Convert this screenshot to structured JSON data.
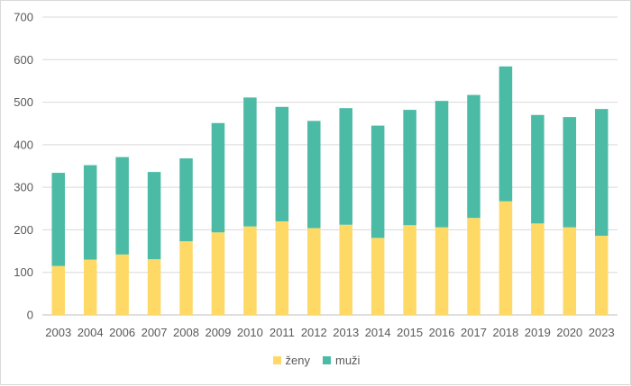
{
  "chart_data": {
    "type": "bar",
    "stacked": true,
    "title": "",
    "xlabel": "",
    "ylabel": "",
    "ylim": [
      0,
      700
    ],
    "yticks": [
      0,
      100,
      200,
      300,
      400,
      500,
      600,
      700
    ],
    "grid": true,
    "legend_position": "bottom",
    "categories": [
      "2003",
      "2004",
      "2006",
      "2007",
      "2008",
      "2009",
      "2010",
      "2011",
      "2012",
      "2013",
      "2014",
      "2015",
      "2016",
      "2017",
      "2018",
      "2019",
      "2020",
      "2023"
    ],
    "series": [
      {
        "name": "ženy",
        "color": "#ffd966",
        "values": [
          115,
          130,
          142,
          131,
          173,
          194,
          208,
          220,
          204,
          212,
          181,
          211,
          206,
          228,
          267,
          215,
          206,
          186
        ]
      },
      {
        "name": "muži",
        "color": "#4cbba5",
        "values": [
          219,
          222,
          229,
          205,
          195,
          257,
          303,
          269,
          252,
          274,
          264,
          271,
          297,
          289,
          317,
          255,
          259,
          298
        ]
      }
    ]
  }
}
